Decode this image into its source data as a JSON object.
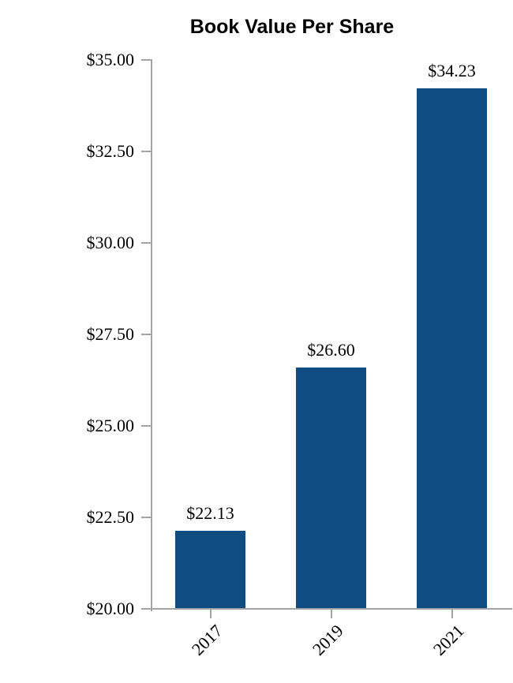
{
  "chart_data": {
    "type": "bar",
    "title": "Book Value Per Share",
    "categories": [
      "2017",
      "2019",
      "2021"
    ],
    "values": [
      22.13,
      26.6,
      34.23
    ],
    "data_labels": [
      "$22.13",
      "$26.60",
      "$34.23"
    ],
    "ylim": [
      20,
      35
    ],
    "yticks": [
      20,
      22.5,
      25,
      27.5,
      30,
      32.5,
      35
    ],
    "ytick_labels": [
      "$20.00",
      "$22.50",
      "$25.00",
      "$27.50",
      "$30.00",
      "$32.50",
      "$35.00"
    ],
    "xlabel": "",
    "ylabel": "",
    "grid": false,
    "legend": false,
    "layout_hints": {
      "bar_orientation": "vertical",
      "xtick_label_rotation_deg": 45,
      "data_labels_position": "above-bar"
    },
    "bar_color": "#0F4C81",
    "axis_color": "#A3A3A3",
    "text_color": "#000000",
    "background_color": "#FFFFFF"
  }
}
